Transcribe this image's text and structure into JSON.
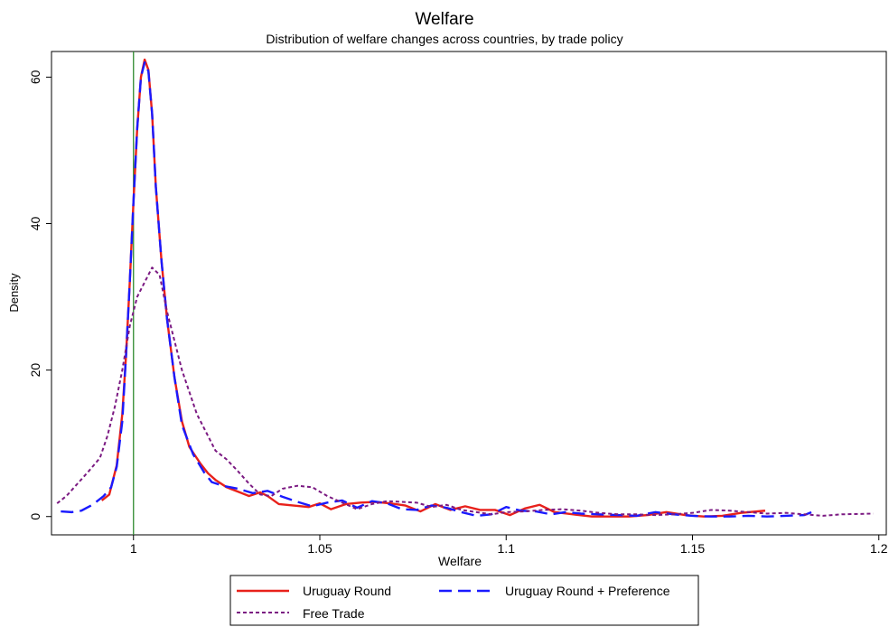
{
  "chart_data": {
    "type": "line",
    "title": "Welfare",
    "subtitle": "Distribution of welfare changes across countries, by trade policy",
    "xlabel": "Welfare",
    "ylabel": "Density",
    "xlim": [
      0.978,
      1.202
    ],
    "ylim": [
      -2.5,
      63.5
    ],
    "x_ticks": [
      1,
      1.05,
      1.1,
      1.15,
      1.2
    ],
    "x_tick_labels": [
      "1",
      "1.05",
      "1.1",
      "1.15",
      "1.2"
    ],
    "y_ticks": [
      0,
      20,
      40,
      60
    ],
    "y_tick_labels": [
      "0",
      "20",
      "40",
      "60"
    ],
    "reference_line": {
      "x": 1,
      "color": "#2e8b2e"
    },
    "grid": false,
    "legend_position": "bottom",
    "series": [
      {
        "name": "Uruguay Round",
        "color": "#e8211b",
        "style": "solid",
        "points": [
          [
            0.9915,
            2.2
          ],
          [
            0.9935,
            3.0
          ],
          [
            0.9955,
            7
          ],
          [
            0.997,
            14
          ],
          [
            0.998,
            22
          ],
          [
            0.999,
            32
          ],
          [
            1.0,
            43
          ],
          [
            1.001,
            53
          ],
          [
            1.002,
            60
          ],
          [
            1.003,
            62.4
          ],
          [
            1.004,
            61
          ],
          [
            1.005,
            55
          ],
          [
            1.006,
            45
          ],
          [
            1.0075,
            35
          ],
          [
            1.009,
            27
          ],
          [
            1.011,
            19
          ],
          [
            1.013,
            13
          ],
          [
            1.015,
            9.5
          ],
          [
            1.018,
            7.2
          ],
          [
            1.02,
            5.9
          ],
          [
            1.022,
            5.0
          ],
          [
            1.025,
            4.0
          ],
          [
            1.028,
            3.4
          ],
          [
            1.031,
            2.8
          ],
          [
            1.034,
            3.3
          ],
          [
            1.036,
            2.8
          ],
          [
            1.039,
            1.7
          ],
          [
            1.043,
            1.5
          ],
          [
            1.047,
            1.3
          ],
          [
            1.05,
            1.8
          ],
          [
            1.053,
            1.0
          ],
          [
            1.057,
            1.7
          ],
          [
            1.061,
            1.9
          ],
          [
            1.065,
            2.0
          ],
          [
            1.069,
            1.8
          ],
          [
            1.073,
            1.5
          ],
          [
            1.077,
            0.7
          ],
          [
            1.081,
            1.7
          ],
          [
            1.085,
            0.9
          ],
          [
            1.089,
            1.4
          ],
          [
            1.093,
            0.9
          ],
          [
            1.097,
            0.9
          ],
          [
            1.101,
            0.2
          ],
          [
            1.105,
            1.1
          ],
          [
            1.109,
            1.6
          ],
          [
            1.113,
            0.6
          ],
          [
            1.118,
            0.3
          ],
          [
            1.123,
            0.0
          ],
          [
            1.128,
            0.0
          ],
          [
            1.133,
            0.0
          ],
          [
            1.138,
            0.2
          ],
          [
            1.143,
            0.6
          ],
          [
            1.148,
            0.2
          ],
          [
            1.153,
            0.0
          ],
          [
            1.158,
            0.1
          ],
          [
            1.163,
            0.5
          ],
          [
            1.1695,
            0.8
          ]
        ]
      },
      {
        "name": "Uruguay Round + Preference",
        "color": "#1a1aff",
        "style": "dashed",
        "points": [
          [
            0.9805,
            0.7
          ],
          [
            0.9835,
            0.6
          ],
          [
            0.986,
            0.8
          ],
          [
            0.989,
            1.6
          ],
          [
            0.992,
            2.8
          ],
          [
            0.994,
            4.0
          ],
          [
            0.9955,
            6.8
          ],
          [
            0.997,
            13
          ],
          [
            0.998,
            22
          ],
          [
            0.999,
            32
          ],
          [
            1.0,
            43
          ],
          [
            1.001,
            53
          ],
          [
            1.002,
            60
          ],
          [
            1.003,
            62
          ],
          [
            1.004,
            60.8
          ],
          [
            1.005,
            55
          ],
          [
            1.006,
            45
          ],
          [
            1.0075,
            35
          ],
          [
            1.009,
            27
          ],
          [
            1.011,
            19
          ],
          [
            1.013,
            12.5
          ],
          [
            1.016,
            8.5
          ],
          [
            1.019,
            6.0
          ],
          [
            1.021,
            4.7
          ],
          [
            1.024,
            4.2
          ],
          [
            1.028,
            3.8
          ],
          [
            1.032,
            3.2
          ],
          [
            1.036,
            3.5
          ],
          [
            1.04,
            2.7
          ],
          [
            1.044,
            2.0
          ],
          [
            1.048,
            1.4
          ],
          [
            1.052,
            1.9
          ],
          [
            1.056,
            2.2
          ],
          [
            1.06,
            1.2
          ],
          [
            1.064,
            2.1
          ],
          [
            1.068,
            1.8
          ],
          [
            1.072,
            1.0
          ],
          [
            1.076,
            0.9
          ],
          [
            1.08,
            1.5
          ],
          [
            1.084,
            1.2
          ],
          [
            1.088,
            0.6
          ],
          [
            1.092,
            0.1
          ],
          [
            1.096,
            0.3
          ],
          [
            1.1,
            1.3
          ],
          [
            1.104,
            0.8
          ],
          [
            1.108,
            0.7
          ],
          [
            1.112,
            0.3
          ],
          [
            1.116,
            0.6
          ],
          [
            1.12,
            0.4
          ],
          [
            1.125,
            0.3
          ],
          [
            1.13,
            0.2
          ],
          [
            1.135,
            0.1
          ],
          [
            1.14,
            0.6
          ],
          [
            1.145,
            0.3
          ],
          [
            1.15,
            0.1
          ],
          [
            1.155,
            0.0
          ],
          [
            1.16,
            0.0
          ],
          [
            1.165,
            0.1
          ],
          [
            1.17,
            0.0
          ],
          [
            1.175,
            0.1
          ],
          [
            1.18,
            0.2
          ],
          [
            1.183,
            0.8
          ]
        ]
      },
      {
        "name": "Free Trade",
        "color": "#7b1a82",
        "style": "dotted",
        "points": [
          [
            0.9795,
            1.8
          ],
          [
            0.982,
            2.8
          ],
          [
            0.985,
            4.5
          ],
          [
            0.988,
            6.2
          ],
          [
            0.991,
            8.0
          ],
          [
            0.993,
            11
          ],
          [
            0.995,
            15
          ],
          [
            0.997,
            20
          ],
          [
            0.999,
            26
          ],
          [
            1.001,
            30
          ],
          [
            1.003,
            32
          ],
          [
            1.005,
            34
          ],
          [
            1.007,
            33
          ],
          [
            1.009,
            28
          ],
          [
            1.011,
            24
          ],
          [
            1.013,
            20
          ],
          [
            1.015,
            17
          ],
          [
            1.017,
            14
          ],
          [
            1.02,
            11
          ],
          [
            1.022,
            9.0
          ],
          [
            1.025,
            7.8
          ],
          [
            1.028,
            6.2
          ],
          [
            1.031,
            4.5
          ],
          [
            1.034,
            3.0
          ],
          [
            1.037,
            2.8
          ],
          [
            1.04,
            3.8
          ],
          [
            1.044,
            4.2
          ],
          [
            1.048,
            4.0
          ],
          [
            1.052,
            2.8
          ],
          [
            1.056,
            1.9
          ],
          [
            1.06,
            1.0
          ],
          [
            1.064,
            1.7
          ],
          [
            1.068,
            2.1
          ],
          [
            1.072,
            2.0
          ],
          [
            1.076,
            1.9
          ],
          [
            1.08,
            1.3
          ],
          [
            1.084,
            1.6
          ],
          [
            1.088,
            0.9
          ],
          [
            1.092,
            0.6
          ],
          [
            1.096,
            0.3
          ],
          [
            1.1,
            0.6
          ],
          [
            1.105,
            0.7
          ],
          [
            1.11,
            0.9
          ],
          [
            1.115,
            1.0
          ],
          [
            1.12,
            0.8
          ],
          [
            1.125,
            0.5
          ],
          [
            1.13,
            0.3
          ],
          [
            1.135,
            0.3
          ],
          [
            1.14,
            0.2
          ],
          [
            1.145,
            0.3
          ],
          [
            1.15,
            0.5
          ],
          [
            1.155,
            0.9
          ],
          [
            1.16,
            0.8
          ],
          [
            1.165,
            0.6
          ],
          [
            1.17,
            0.4
          ],
          [
            1.175,
            0.5
          ],
          [
            1.18,
            0.3
          ],
          [
            1.185,
            0.1
          ],
          [
            1.19,
            0.3
          ],
          [
            1.1985,
            0.4
          ]
        ]
      }
    ]
  }
}
